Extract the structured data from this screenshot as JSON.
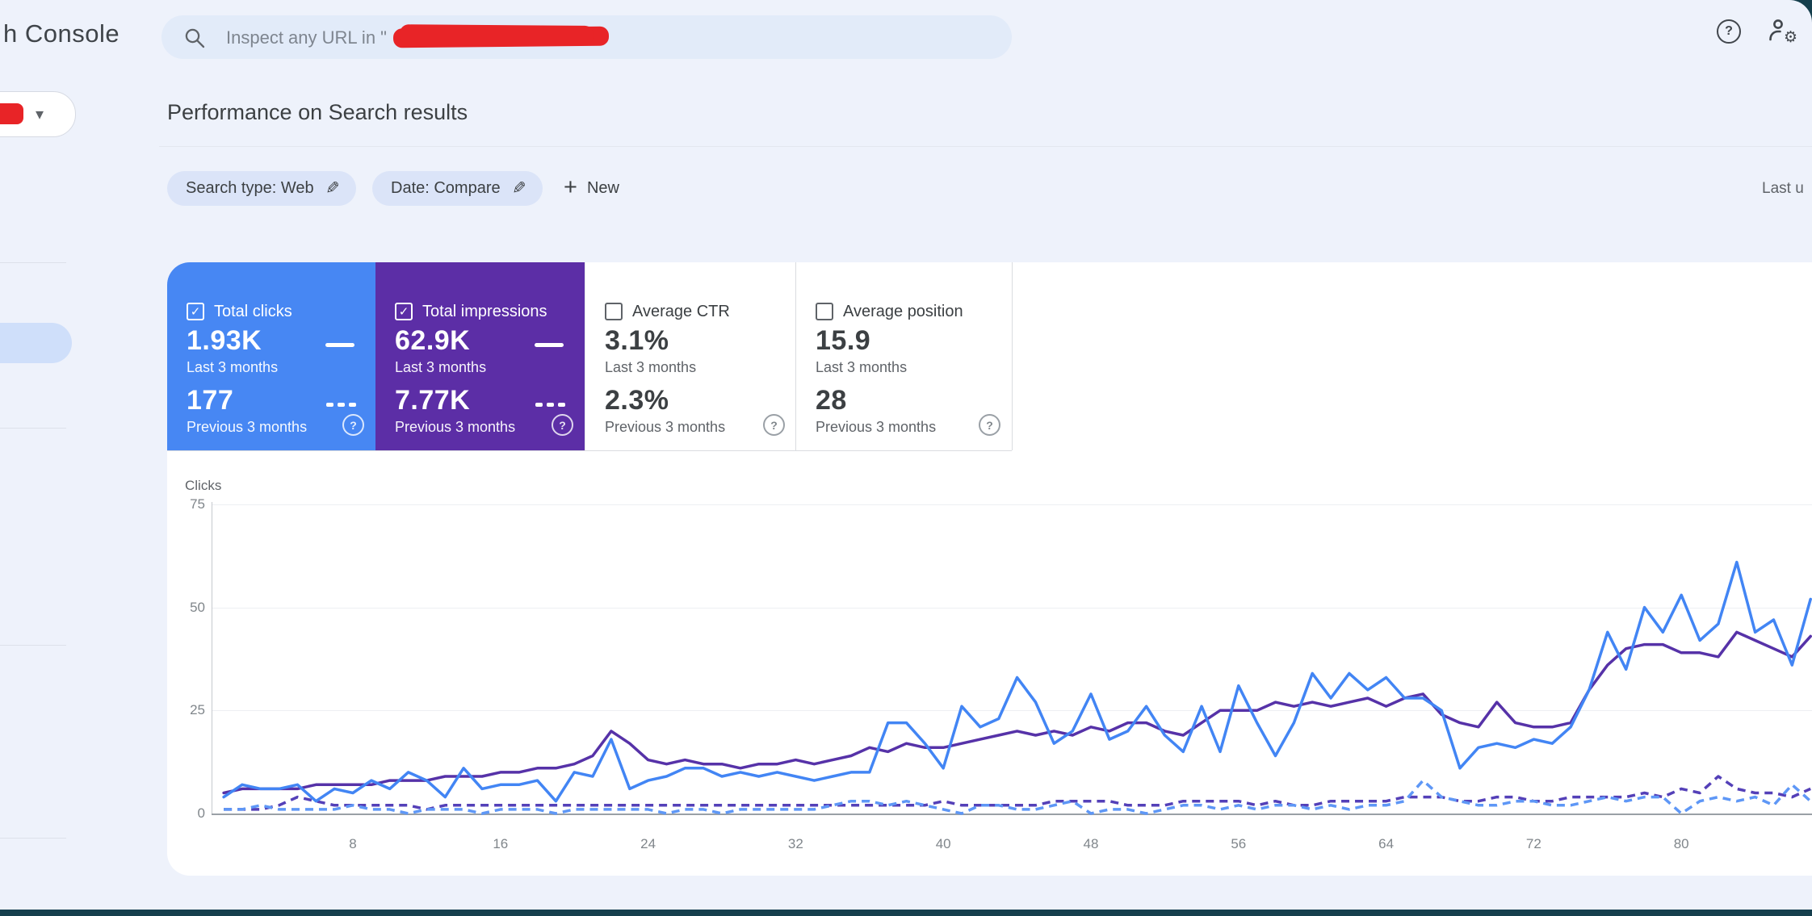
{
  "app": {
    "brand_fragment": "h Console",
    "background_color": "#eef2fb",
    "chrome_color": "#153f4d"
  },
  "header": {
    "search_placeholder_prefix": "Inspect any URL in \"",
    "search_redacted": true
  },
  "property_selector": {
    "redacted": true,
    "caret": "▾"
  },
  "page": {
    "title": "Performance on Search results",
    "last_updated_fragment": "Last u"
  },
  "filters": {
    "chips": [
      {
        "label": "Search type: Web"
      },
      {
        "label": "Date: Compare"
      }
    ],
    "new_button": {
      "plus": "+",
      "label": "New"
    }
  },
  "cards": [
    {
      "label": "Total clicks",
      "checked": true,
      "value_last": "1.93K",
      "period_last": "Last 3 months",
      "value_prev": "177",
      "period_prev": "Previous 3 months",
      "color": "#4787f3"
    },
    {
      "label": "Total impressions",
      "checked": true,
      "value_last": "62.9K",
      "period_last": "Last 3 months",
      "value_prev": "7.77K",
      "period_prev": "Previous 3 months",
      "color": "#5c2ea6"
    },
    {
      "label": "Average CTR",
      "checked": false,
      "value_last": "3.1%",
      "period_last": "Last 3 months",
      "value_prev": "2.3%",
      "period_prev": "Previous 3 months",
      "color": "#ffffff"
    },
    {
      "label": "Average position",
      "checked": false,
      "value_last": "15.9",
      "period_last": "Last 3 months",
      "value_prev": "28",
      "period_prev": "Previous 3 months",
      "color": "#ffffff"
    }
  ],
  "chart_data": {
    "type": "line",
    "title": "Performance on Search results",
    "ylabel": "Clicks",
    "ylim": [
      0,
      75
    ],
    "y_ticks": [
      75,
      50,
      25,
      0
    ],
    "x_ticks": [
      8,
      16,
      24,
      32,
      40,
      48,
      56,
      64,
      72,
      80
    ],
    "x_range": [
      1,
      87
    ],
    "grid": true,
    "series": [
      {
        "name": "Total clicks - Last 3 months",
        "style": "solid",
        "color": "#4285f4",
        "values": [
          4,
          7,
          6,
          6,
          7,
          3,
          6,
          5,
          8,
          6,
          10,
          8,
          4,
          11,
          6,
          7,
          7,
          8,
          3,
          10,
          9,
          18,
          6,
          8,
          9,
          11,
          11,
          9,
          10,
          9,
          10,
          9,
          8,
          9,
          10,
          10,
          22,
          22,
          17,
          11,
          26,
          21,
          23,
          33,
          27,
          17,
          20,
          29,
          18,
          20,
          26,
          19,
          15,
          26,
          15,
          31,
          22,
          14,
          22,
          34,
          28,
          34,
          30,
          33,
          28,
          28,
          25,
          11,
          16,
          17,
          16,
          18,
          17,
          21,
          30,
          44,
          35,
          50,
          44,
          53,
          42,
          46,
          61,
          44,
          47,
          36,
          52
        ]
      },
      {
        "name": "Total impressions - Last 3 months",
        "style": "solid",
        "color": "#5632a8",
        "values": [
          5,
          6,
          6,
          6,
          6,
          7,
          7,
          7,
          7,
          8,
          8,
          8,
          9,
          9,
          9,
          10,
          10,
          11,
          11,
          12,
          14,
          20,
          17,
          13,
          12,
          13,
          12,
          12,
          11,
          12,
          12,
          13,
          12,
          13,
          14,
          16,
          15,
          17,
          16,
          16,
          17,
          18,
          19,
          20,
          19,
          20,
          19,
          21,
          20,
          22,
          22,
          20,
          19,
          22,
          25,
          25,
          25,
          27,
          26,
          27,
          26,
          27,
          28,
          26,
          28,
          29,
          24,
          22,
          21,
          27,
          22,
          21,
          21,
          22,
          30,
          36,
          40,
          41,
          41,
          39,
          39,
          38,
          44,
          42,
          40,
          38,
          43
        ]
      },
      {
        "name": "Total clicks - Previous 3 months",
        "style": "dashed",
        "color": "#5e97f6",
        "values": [
          1,
          1,
          2,
          1,
          1,
          1,
          1,
          2,
          1,
          1,
          0,
          1,
          1,
          1,
          0,
          1,
          1,
          1,
          0,
          1,
          1,
          1,
          1,
          1,
          0,
          1,
          1,
          0,
          1,
          1,
          1,
          1,
          1,
          2,
          3,
          3,
          2,
          3,
          2,
          1,
          0,
          2,
          2,
          1,
          1,
          2,
          3,
          0,
          1,
          1,
          0,
          1,
          2,
          2,
          1,
          2,
          1,
          2,
          2,
          1,
          2,
          1,
          2,
          2,
          3,
          8,
          4,
          3,
          2,
          2,
          3,
          3,
          2,
          2,
          3,
          4,
          3,
          4,
          4,
          0,
          3,
          4,
          3,
          4,
          2,
          7,
          3
        ]
      },
      {
        "name": "Total impressions - Previous 3 months",
        "style": "dashed",
        "color": "#5440b8",
        "values": [
          1,
          1,
          1,
          2,
          4,
          3,
          2,
          2,
          2,
          2,
          2,
          1,
          2,
          2,
          2,
          2,
          2,
          2,
          2,
          2,
          2,
          2,
          2,
          2,
          2,
          2,
          2,
          2,
          2,
          2,
          2,
          2,
          2,
          2,
          2,
          2,
          2,
          2,
          2,
          3,
          2,
          2,
          2,
          2,
          2,
          3,
          3,
          3,
          3,
          2,
          2,
          2,
          3,
          3,
          3,
          3,
          2,
          3,
          2,
          2,
          3,
          3,
          3,
          3,
          4,
          4,
          4,
          3,
          3,
          4,
          4,
          3,
          3,
          4,
          4,
          4,
          4,
          5,
          4,
          6,
          5,
          9,
          6,
          5,
          5,
          4,
          6
        ]
      }
    ]
  }
}
